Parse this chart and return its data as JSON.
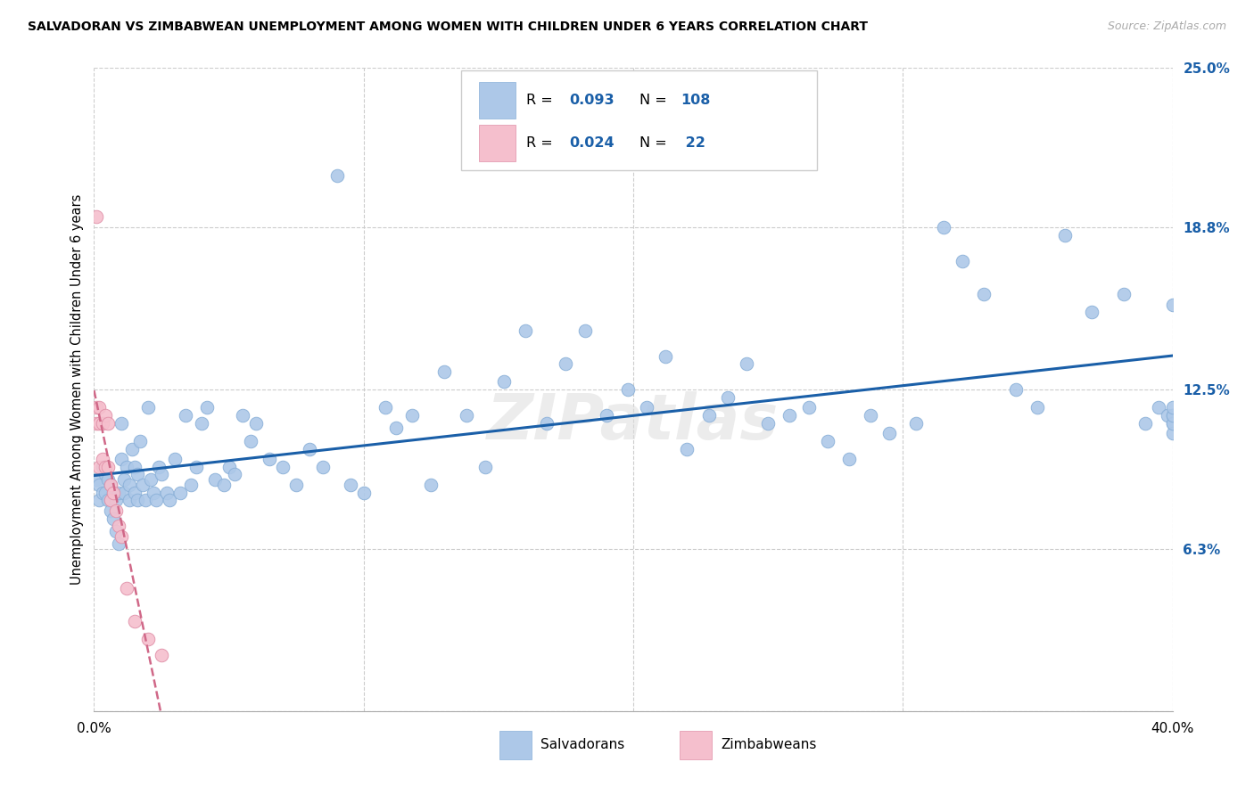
{
  "title": "SALVADORAN VS ZIMBABWEAN UNEMPLOYMENT AMONG WOMEN WITH CHILDREN UNDER 6 YEARS CORRELATION CHART",
  "source": "Source: ZipAtlas.com",
  "ylabel": "Unemployment Among Women with Children Under 6 years",
  "ylim": [
    0.0,
    0.25
  ],
  "xlim": [
    0.0,
    0.4
  ],
  "yticks_right": [
    0.063,
    0.125,
    0.188,
    0.25
  ],
  "ytick_right_labels": [
    "6.3%",
    "12.5%",
    "18.8%",
    "25.0%"
  ],
  "salvadoran_color": "#adc8e8",
  "salvadoran_edge": "#8ab0d8",
  "zimbabwean_color": "#f5bfcd",
  "zimbabwean_edge": "#e090a8",
  "trend_sal_color": "#1a5fa8",
  "trend_zim_color": "#d06888",
  "background_color": "#ffffff",
  "grid_color": "#cccccc",
  "watermark": "ZIPatlas",
  "legend_R_sal": "0.093",
  "legend_N_sal": "108",
  "legend_R_zim": "0.024",
  "legend_N_zim": "22",
  "right_label_color": "#1a5fa8",
  "sal_x": [
    0.001,
    0.002,
    0.002,
    0.003,
    0.003,
    0.004,
    0.004,
    0.005,
    0.005,
    0.006,
    0.006,
    0.007,
    0.007,
    0.008,
    0.008,
    0.009,
    0.009,
    0.01,
    0.01,
    0.011,
    0.011,
    0.012,
    0.013,
    0.013,
    0.014,
    0.015,
    0.015,
    0.016,
    0.016,
    0.017,
    0.018,
    0.019,
    0.02,
    0.021,
    0.022,
    0.023,
    0.024,
    0.025,
    0.027,
    0.028,
    0.03,
    0.032,
    0.034,
    0.036,
    0.038,
    0.04,
    0.042,
    0.045,
    0.048,
    0.05,
    0.052,
    0.055,
    0.058,
    0.06,
    0.065,
    0.07,
    0.075,
    0.08,
    0.085,
    0.09,
    0.095,
    0.1,
    0.108,
    0.112,
    0.118,
    0.125,
    0.13,
    0.138,
    0.145,
    0.152,
    0.16,
    0.168,
    0.175,
    0.182,
    0.19,
    0.198,
    0.205,
    0.212,
    0.22,
    0.228,
    0.235,
    0.242,
    0.25,
    0.258,
    0.265,
    0.272,
    0.28,
    0.288,
    0.295,
    0.305,
    0.315,
    0.322,
    0.33,
    0.342,
    0.35,
    0.36,
    0.37,
    0.382,
    0.39,
    0.395,
    0.398,
    0.4,
    0.402,
    0.405,
    0.408,
    0.412,
    0.415,
    0.418
  ],
  "sal_y": [
    0.09,
    0.088,
    0.082,
    0.095,
    0.085,
    0.092,
    0.085,
    0.09,
    0.082,
    0.088,
    0.078,
    0.085,
    0.075,
    0.082,
    0.07,
    0.085,
    0.065,
    0.112,
    0.098,
    0.09,
    0.085,
    0.095,
    0.088,
    0.082,
    0.102,
    0.095,
    0.085,
    0.092,
    0.082,
    0.105,
    0.088,
    0.082,
    0.118,
    0.09,
    0.085,
    0.082,
    0.095,
    0.092,
    0.085,
    0.082,
    0.098,
    0.085,
    0.115,
    0.088,
    0.095,
    0.112,
    0.118,
    0.09,
    0.088,
    0.095,
    0.092,
    0.115,
    0.105,
    0.112,
    0.098,
    0.095,
    0.088,
    0.102,
    0.095,
    0.208,
    0.088,
    0.085,
    0.118,
    0.11,
    0.115,
    0.088,
    0.132,
    0.115,
    0.095,
    0.128,
    0.148,
    0.112,
    0.135,
    0.148,
    0.115,
    0.125,
    0.118,
    0.138,
    0.102,
    0.115,
    0.122,
    0.135,
    0.112,
    0.115,
    0.118,
    0.105,
    0.098,
    0.115,
    0.108,
    0.112,
    0.188,
    0.175,
    0.162,
    0.125,
    0.118,
    0.185,
    0.155,
    0.162,
    0.112,
    0.118,
    0.115,
    0.158,
    0.112,
    0.115,
    0.108,
    0.112,
    0.115,
    0.118
  ],
  "zim_x": [
    0.001,
    0.001,
    0.001,
    0.002,
    0.002,
    0.002,
    0.003,
    0.003,
    0.004,
    0.004,
    0.005,
    0.005,
    0.006,
    0.006,
    0.007,
    0.008,
    0.009,
    0.01,
    0.012,
    0.015,
    0.02,
    0.025
  ],
  "zim_y": [
    0.192,
    0.118,
    0.112,
    0.118,
    0.112,
    0.095,
    0.112,
    0.098,
    0.115,
    0.095,
    0.112,
    0.095,
    0.088,
    0.082,
    0.085,
    0.078,
    0.072,
    0.068,
    0.048,
    0.035,
    0.028,
    0.022
  ]
}
